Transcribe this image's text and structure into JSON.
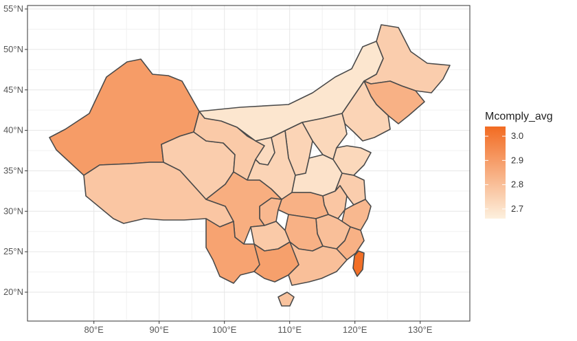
{
  "chart_data": {
    "type": "choropleth",
    "title": "",
    "x_ticks": [
      "80°E",
      "90°E",
      "100°E",
      "110°E",
      "120°E",
      "130°E"
    ],
    "y_ticks": [
      "20°N",
      "25°N",
      "30°N",
      "35°N",
      "40°N",
      "45°N",
      "50°N",
      "55°N"
    ],
    "legend": {
      "title": "Mcomply_avg",
      "ticks": [
        "3.0",
        "2.9",
        "2.8",
        "2.7"
      ],
      "range": [
        2.66,
        3.04
      ],
      "color_low": "#fdf0de",
      "color_high": "#f26b22"
    },
    "grid": true,
    "regions": [
      {
        "name": "Xinjiang",
        "value": 2.9
      },
      {
        "name": "Tibet",
        "value": 2.78
      },
      {
        "name": "Qinghai",
        "value": 2.76
      },
      {
        "name": "Gansu",
        "value": 2.77
      },
      {
        "name": "Inner Mongolia",
        "value": 2.69
      },
      {
        "name": "Heilongjiang",
        "value": 2.76
      },
      {
        "name": "Jilin",
        "value": 2.84
      },
      {
        "name": "Liaoning",
        "value": 2.74
      },
      {
        "name": "Sichuan",
        "value": 2.85
      },
      {
        "name": "Yunnan",
        "value": 2.88
      },
      {
        "name": "Guangxi",
        "value": 2.89
      },
      {
        "name": "Guangdong",
        "value": 2.8
      },
      {
        "name": "Hainan",
        "value": 2.79
      },
      {
        "name": "Taiwan",
        "value": 3.03
      },
      {
        "name": "Fujian",
        "value": 2.84
      },
      {
        "name": "Hunan",
        "value": 2.84
      },
      {
        "name": "Hubei",
        "value": 2.84
      },
      {
        "name": "Guizhou",
        "value": 2.77
      },
      {
        "name": "Chongqing",
        "value": 2.82
      },
      {
        "name": "Shaanxi",
        "value": 2.74
      },
      {
        "name": "Henan",
        "value": 2.7
      },
      {
        "name": "Shanxi",
        "value": 2.74
      },
      {
        "name": "Ningxia",
        "value": 2.72
      },
      {
        "name": "Hebei",
        "value": 2.73
      },
      {
        "name": "Shandong",
        "value": 2.73
      },
      {
        "name": "Jiangsu",
        "value": 2.76
      },
      {
        "name": "Anhui",
        "value": 2.78
      },
      {
        "name": "Zhejiang",
        "value": 2.82
      },
      {
        "name": "Jiangxi",
        "value": 2.8
      }
    ]
  }
}
